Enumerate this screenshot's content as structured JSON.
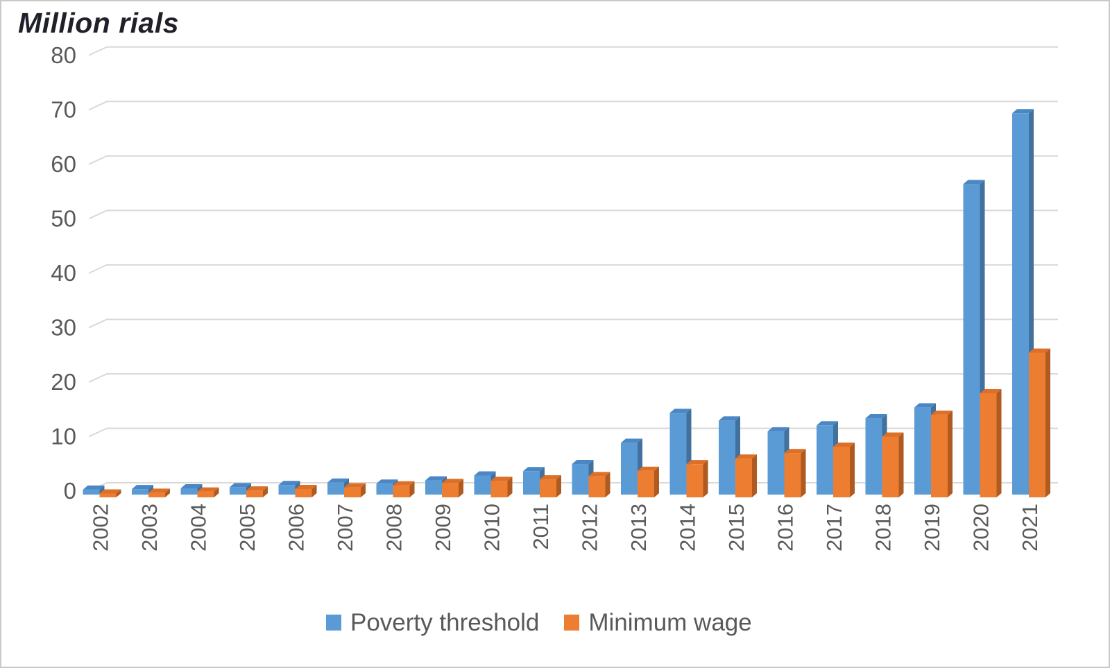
{
  "chart_data": {
    "type": "bar",
    "style": "3d-clustered-column",
    "title": "Million rials",
    "categories": [
      "2002",
      "2003",
      "2004",
      "2005",
      "2006",
      "2007",
      "2008",
      "2009",
      "2010",
      "2011",
      "2012",
      "2013",
      "2014",
      "2015",
      "2016",
      "2017",
      "2018",
      "2019",
      "2020",
      "2021"
    ],
    "series": [
      {
        "name": "Poverty threshold",
        "color": "#5B9BD5",
        "side_color": "#41719C",
        "top_color": "#4A87C4",
        "values": [
          0.9,
          1.0,
          1.15,
          1.35,
          1.75,
          2.2,
          2.0,
          2.6,
          3.5,
          4.3,
          5.6,
          9.5,
          15.0,
          13.6,
          11.6,
          12.7,
          14.0,
          16.0,
          57.0,
          70.0
        ]
      },
      {
        "name": "Minimum wage",
        "color": "#ED7D31",
        "side_color": "#AE5A21",
        "top_color": "#DD6F27",
        "values": [
          0.7,
          0.85,
          1.07,
          1.25,
          1.53,
          1.83,
          2.2,
          2.64,
          3.03,
          3.3,
          3.9,
          4.87,
          6.09,
          7.12,
          8.12,
          9.3,
          11.14,
          15.17,
          19.1,
          26.55
        ]
      }
    ],
    "yticks": [
      0,
      10,
      20,
      30,
      40,
      50,
      60,
      70,
      80
    ],
    "ylim": [
      0,
      80
    ],
    "xlabel": "",
    "ylabel": "Million rials",
    "grid": true,
    "grid_color": "#D9D9D9",
    "axis_text_color": "#595959",
    "legend_position": "bottom"
  }
}
